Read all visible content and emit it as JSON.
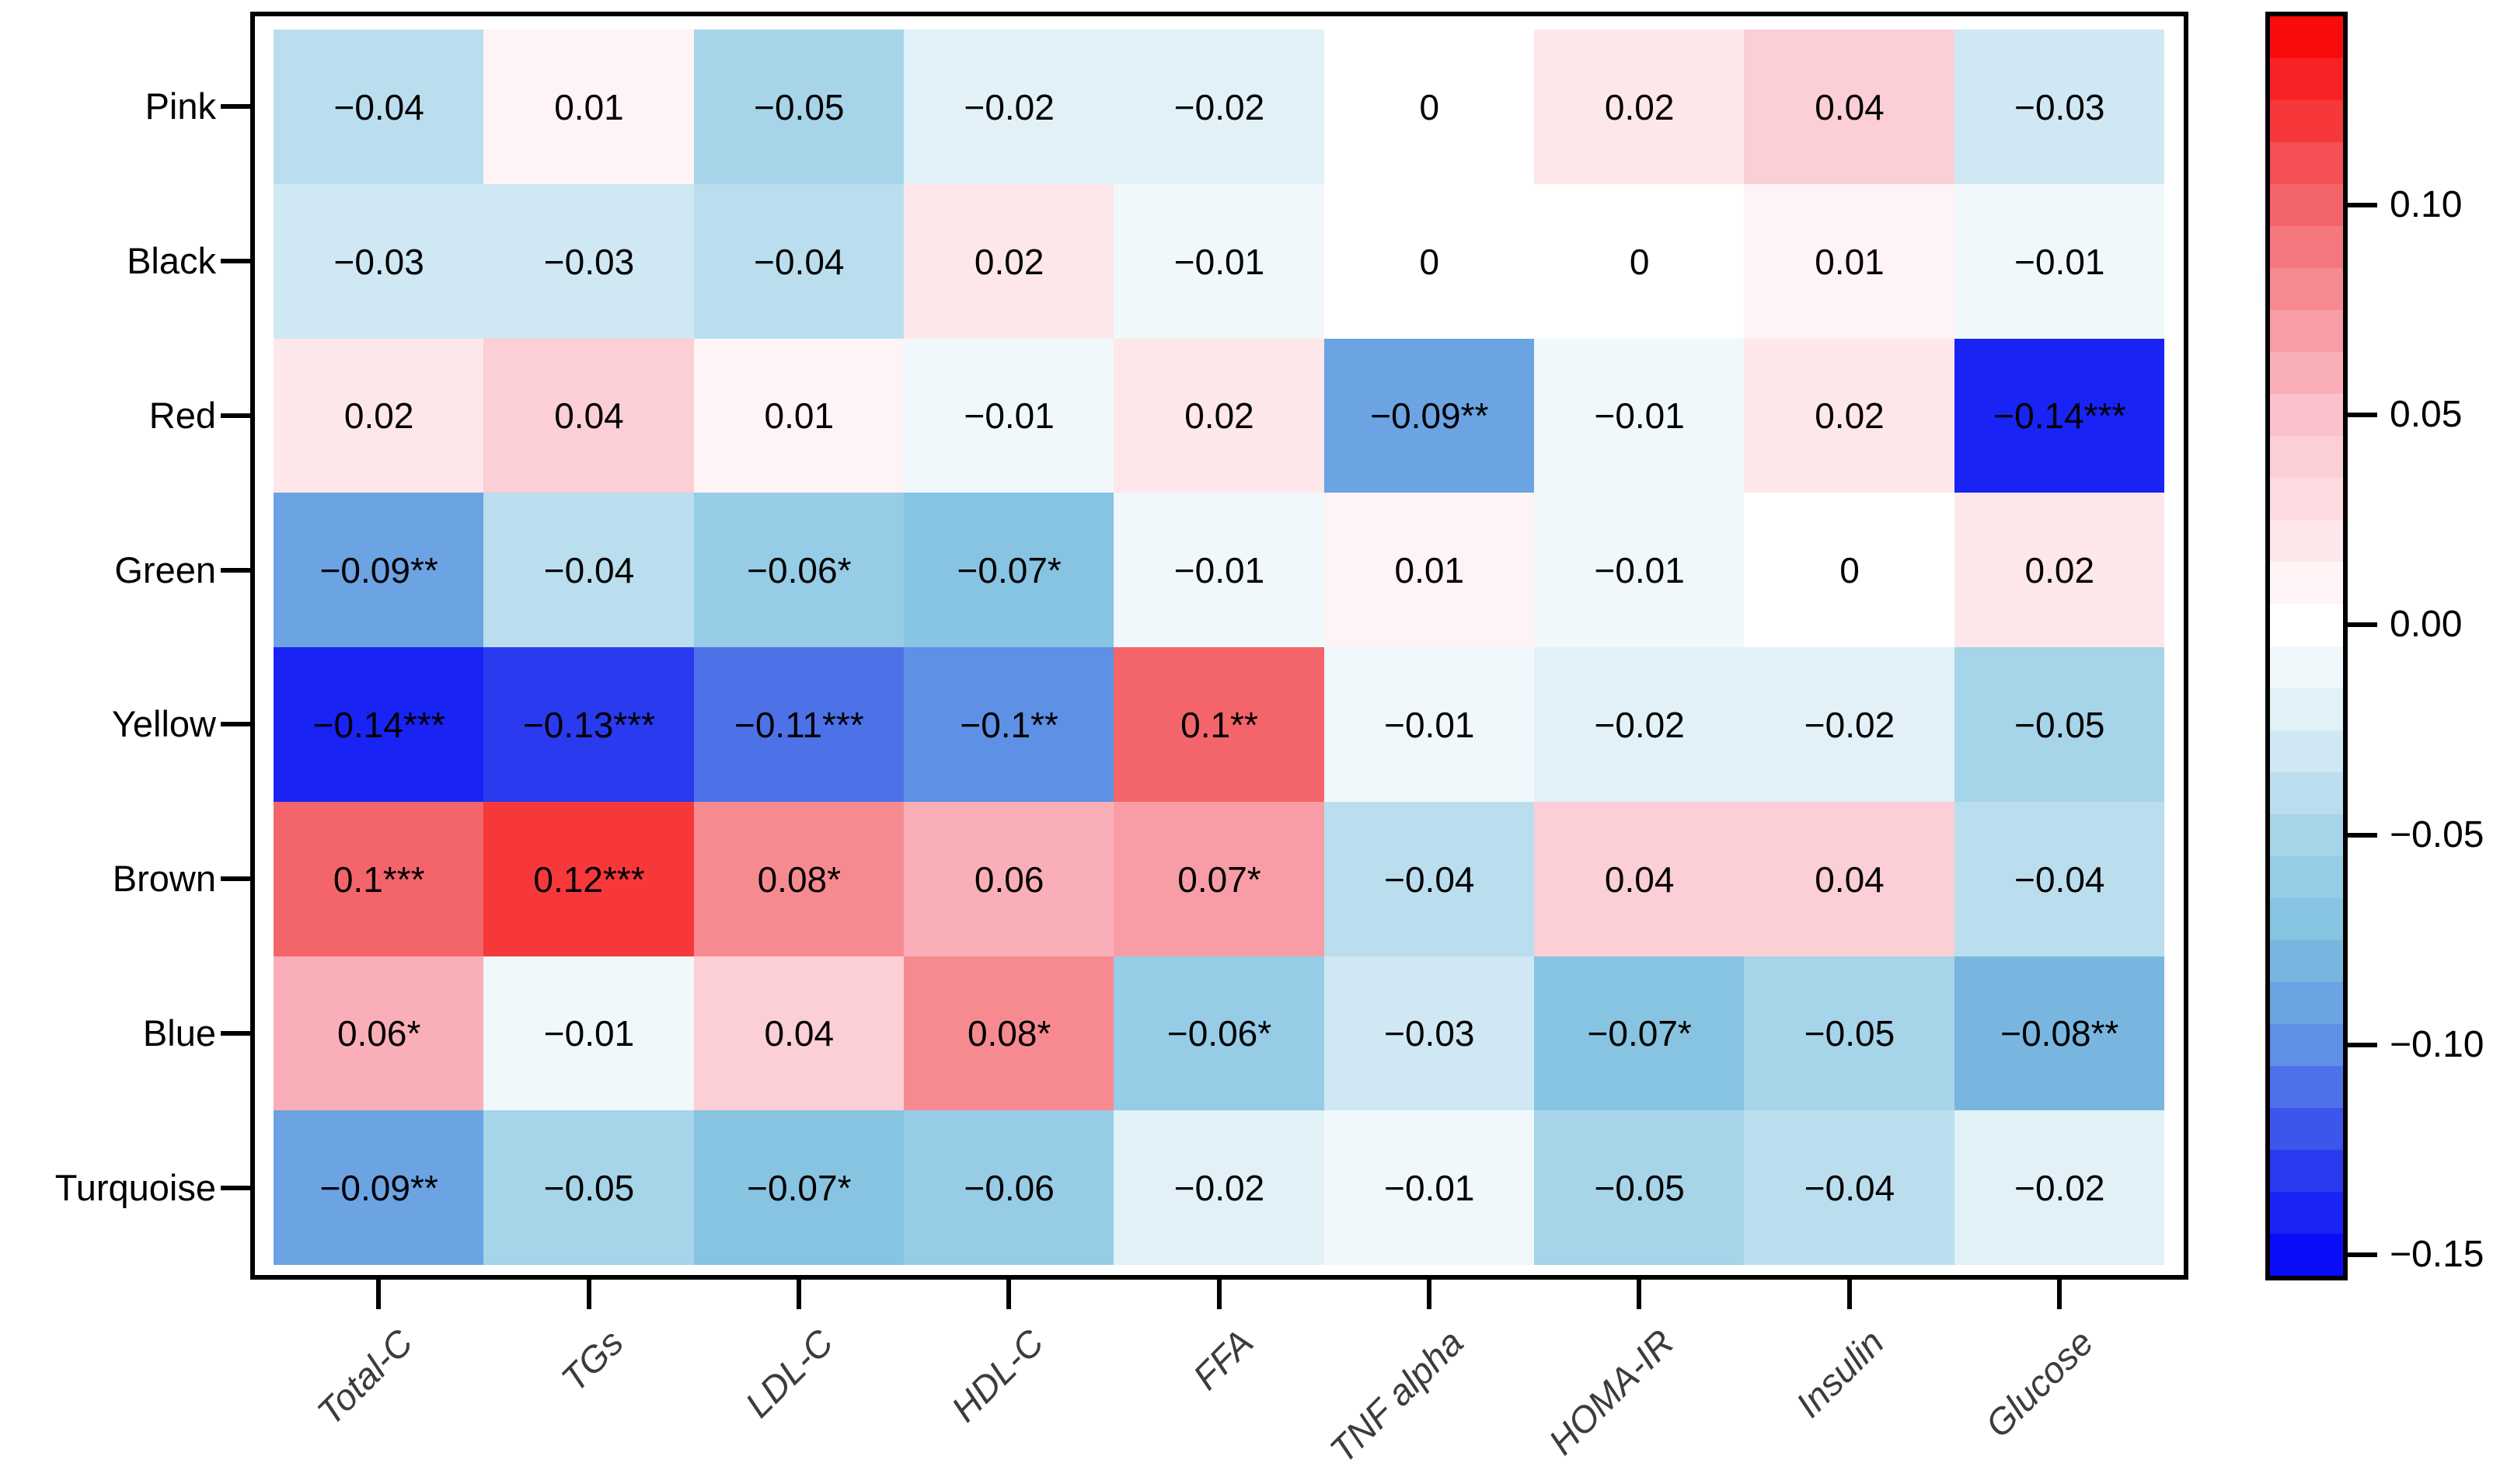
{
  "chart_data": {
    "type": "heatmap",
    "title": "",
    "rows": [
      "Pink",
      "Black",
      "Red",
      "Green",
      "Yellow",
      "Brown",
      "Blue",
      "Turquoise"
    ],
    "columns": [
      "Total-C",
      "TGs",
      "LDL-C",
      "HDL-C",
      "FFA",
      "TNF alpha",
      "HOMA-IR",
      "Insulin",
      "Glucose"
    ],
    "values": [
      [
        -0.04,
        0.01,
        -0.05,
        -0.02,
        -0.02,
        0.0,
        0.02,
        0.04,
        -0.03
      ],
      [
        -0.03,
        -0.03,
        -0.04,
        0.02,
        -0.01,
        0.0,
        0.0,
        0.01,
        -0.01
      ],
      [
        0.02,
        0.04,
        0.01,
        -0.01,
        0.02,
        -0.09,
        -0.01,
        0.02,
        -0.14
      ],
      [
        -0.09,
        -0.04,
        -0.06,
        -0.07,
        -0.01,
        0.01,
        -0.01,
        0.0,
        0.02
      ],
      [
        -0.14,
        -0.13,
        -0.11,
        -0.1,
        0.1,
        -0.01,
        -0.02,
        -0.02,
        -0.05
      ],
      [
        0.1,
        0.12,
        0.08,
        0.06,
        0.07,
        -0.04,
        0.04,
        0.04,
        -0.04
      ],
      [
        0.06,
        -0.01,
        0.04,
        0.08,
        -0.06,
        -0.03,
        -0.07,
        -0.05,
        -0.08
      ],
      [
        -0.09,
        -0.05,
        -0.07,
        -0.06,
        -0.02,
        -0.01,
        -0.05,
        -0.04,
        -0.02
      ]
    ],
    "cell_labels": [
      [
        "−0.04",
        "0.01",
        "−0.05",
        "−0.02",
        "−0.02",
        "0",
        "0.02",
        "0.04",
        "−0.03"
      ],
      [
        "−0.03",
        "−0.03",
        "−0.04",
        "0.02",
        "−0.01",
        "0",
        "0",
        "0.01",
        "−0.01"
      ],
      [
        "0.02",
        "0.04",
        "0.01",
        "−0.01",
        "0.02",
        "−0.09**",
        "−0.01",
        "0.02",
        "−0.14***"
      ],
      [
        "−0.09**",
        "−0.04",
        "−0.06*",
        "−0.07*",
        "−0.01",
        "0.01",
        "−0.01",
        "0",
        "0.02"
      ],
      [
        "−0.14***",
        "−0.13***",
        "−0.11***",
        "−0.1**",
        "0.1**",
        "−0.01",
        "−0.02",
        "−0.02",
        "−0.05"
      ],
      [
        "0.1***",
        "0.12***",
        "0.08*",
        "0.06",
        "0.07*",
        "−0.04",
        "0.04",
        "0.04",
        "−0.04"
      ],
      [
        "0.06*",
        "−0.01",
        "0.04",
        "0.08*",
        "−0.06*",
        "−0.03",
        "−0.07*",
        "−0.05",
        "−0.08**"
      ],
      [
        "−0.09**",
        "−0.05",
        "−0.07*",
        "−0.06",
        "−0.02",
        "−0.01",
        "−0.05",
        "−0.04",
        "−0.02"
      ]
    ],
    "colorbar": {
      "tick_labels": [
        "0.10",
        "0.05",
        "0.00",
        "−0.05",
        "−0.10",
        "−0.15"
      ],
      "tick_values": [
        0.1,
        0.05,
        0.0,
        -0.05,
        -0.1,
        -0.15
      ],
      "vmin": -0.155,
      "vmax": 0.145,
      "bands": 30
    },
    "palette_anchors": [
      [
        -0.155,
        "#0000FA"
      ],
      [
        -0.125,
        "#3346EC"
      ],
      [
        -0.1,
        "#5E90E6"
      ],
      [
        -0.075,
        "#7FC0DF"
      ],
      [
        -0.05,
        "#A6D4E9"
      ],
      [
        -0.025,
        "#D9EDF5"
      ],
      [
        0.0,
        "#FFFFFF"
      ],
      [
        0.05,
        "#FBC2CB"
      ],
      [
        0.1,
        "#F4656B"
      ],
      [
        0.145,
        "#FA0000"
      ]
    ],
    "axis_color": "#000000",
    "column_label_color": "#3C3C3C",
    "layout": {
      "grid": false,
      "legend_position": "right-colorbar",
      "x_label_rotation": 45
    }
  }
}
